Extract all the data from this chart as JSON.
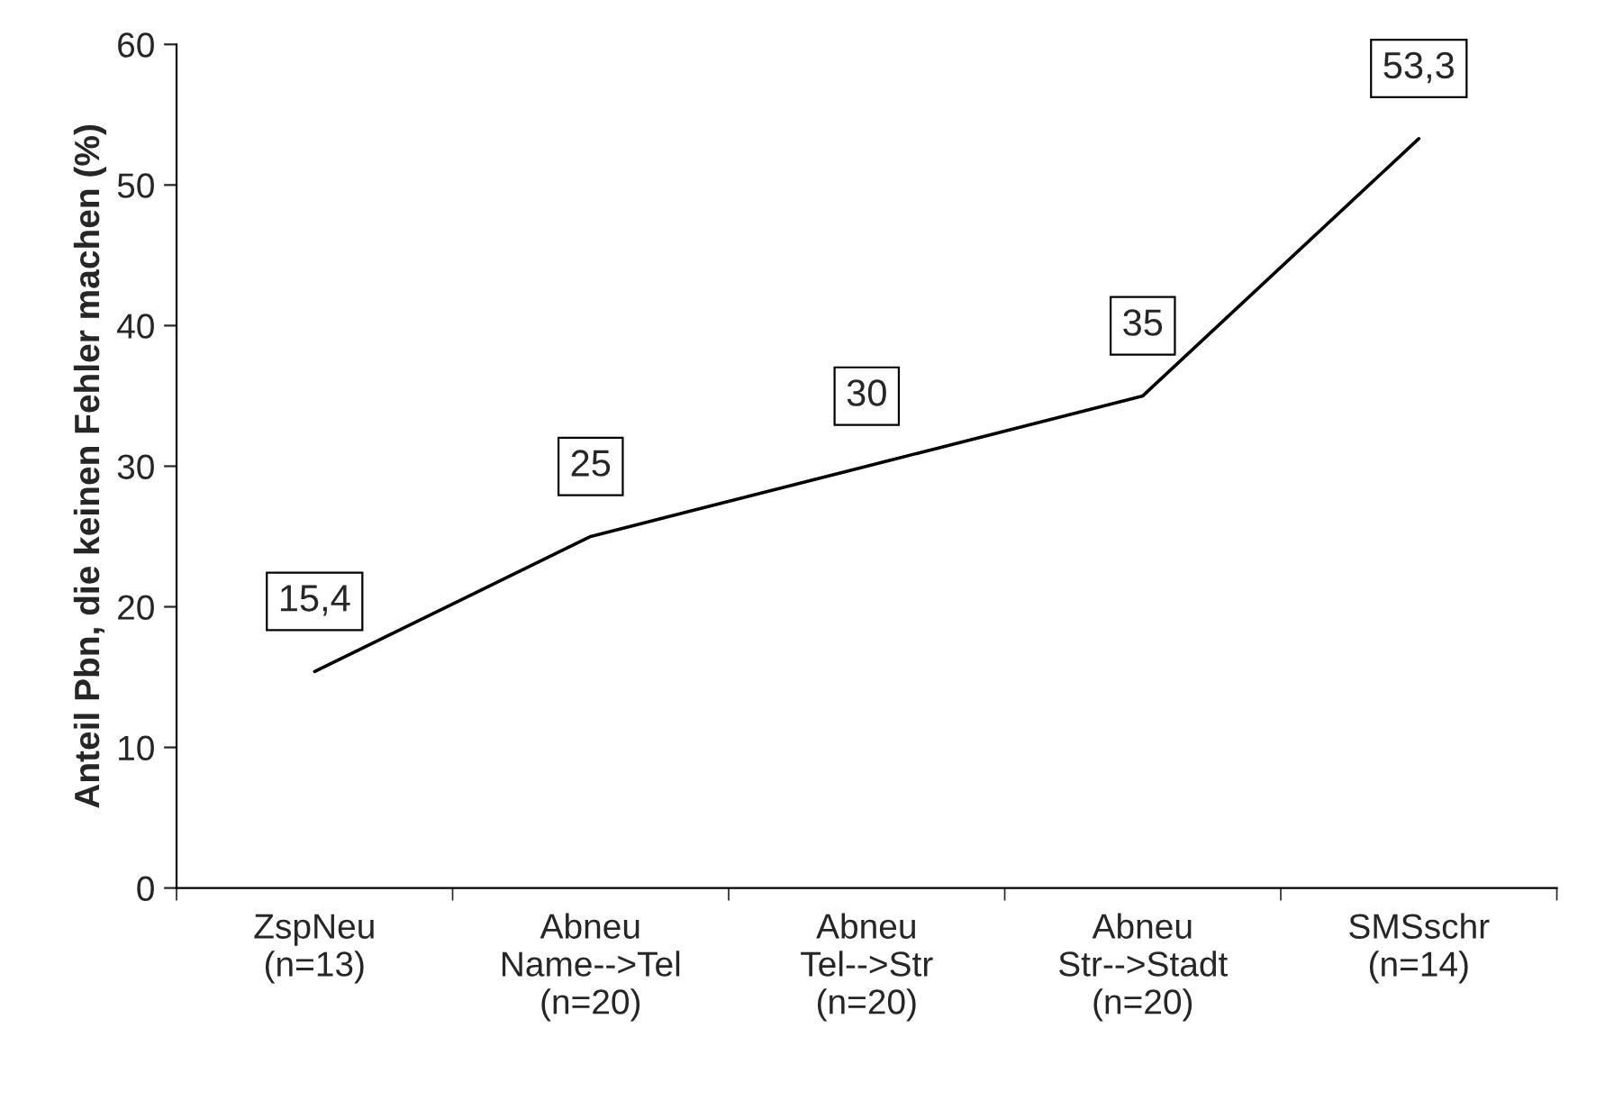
{
  "chart_data": {
    "type": "line",
    "ylabel": "Anteil Pbn, die keinen Fehler machen (%)",
    "categories": [
      "ZspNeu\n(n=13)",
      "Abneu\nName-->Tel\n(n=20)",
      "Abneu\nTel-->Str\n(n=20)",
      "Abneu\nStr-->Stadt\n(n=20)",
      "SMSschr\n(n=14)"
    ],
    "series": [
      {
        "color": "#000000",
        "values": [
          15.4,
          25,
          30,
          35,
          53.3
        ]
      }
    ],
    "value_labels": [
      "15,4",
      "25",
      "30",
      "35",
      "53,3"
    ],
    "ylim": [
      0,
      60
    ],
    "yticks": [
      0,
      10,
      20,
      30,
      40,
      50,
      60
    ],
    "grid": false,
    "legend": false,
    "marker": "none",
    "line_style": "solid"
  }
}
